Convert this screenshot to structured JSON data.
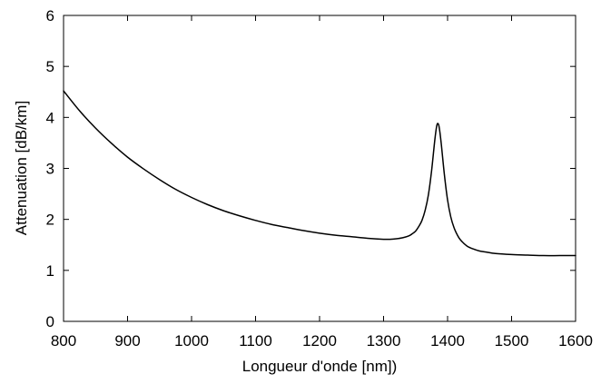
{
  "chart_data": {
    "type": "line",
    "title": "",
    "xlabel": "Longueur d'onde [nm])",
    "ylabel": "Attenuation [dB/km]",
    "xlim": [
      800,
      1600
    ],
    "ylim": [
      0,
      6
    ],
    "grid": false,
    "legend": "none",
    "x_ticks": [
      "800",
      "900",
      "1000",
      "1100",
      "1200",
      "1300",
      "1400",
      "1500",
      "1600"
    ],
    "y_ticks": [
      "0",
      "1",
      "2",
      "3",
      "4",
      "5",
      "6"
    ],
    "series": [
      {
        "color": "#000000",
        "x": [
          800,
          825,
          850,
          875,
          900,
          925,
          950,
          975,
          1000,
          1025,
          1050,
          1075,
          1100,
          1125,
          1150,
          1175,
          1200,
          1225,
          1250,
          1275,
          1300,
          1310,
          1320,
          1330,
          1340,
          1345,
          1350,
          1355,
          1360,
          1365,
          1370,
          1375,
          1380,
          1383,
          1385,
          1387,
          1390,
          1395,
          1400,
          1405,
          1410,
          1415,
          1420,
          1430,
          1440,
          1450,
          1460,
          1475,
          1500,
          1525,
          1550,
          1575,
          1600
        ],
        "y": [
          4.52,
          4.13,
          3.79,
          3.49,
          3.22,
          2.99,
          2.78,
          2.59,
          2.43,
          2.29,
          2.17,
          2.07,
          1.98,
          1.9,
          1.84,
          1.78,
          1.73,
          1.69,
          1.66,
          1.63,
          1.61,
          1.61,
          1.62,
          1.64,
          1.68,
          1.72,
          1.77,
          1.86,
          1.98,
          2.18,
          2.48,
          2.95,
          3.55,
          3.83,
          3.88,
          3.8,
          3.5,
          2.88,
          2.38,
          2.05,
          1.84,
          1.7,
          1.6,
          1.48,
          1.42,
          1.38,
          1.36,
          1.33,
          1.31,
          1.3,
          1.29,
          1.29,
          1.29
        ]
      }
    ]
  }
}
